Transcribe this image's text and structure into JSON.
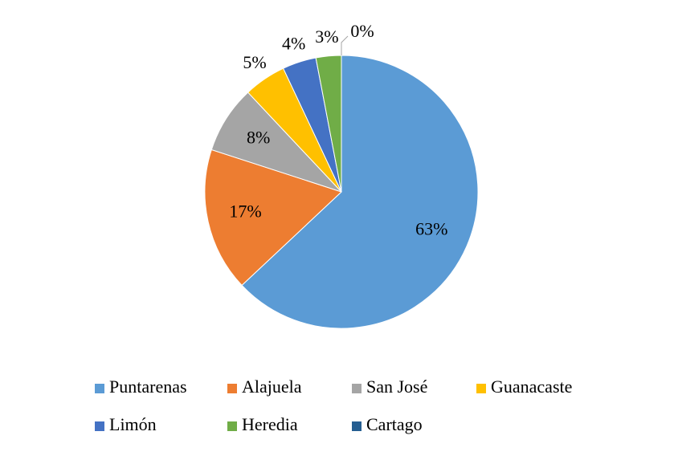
{
  "chart_data": {
    "type": "pie",
    "categories": [
      "Puntarenas",
      "Alajuela",
      "San José",
      "Guanacaste",
      "Limón",
      "Heredia",
      "Cartago"
    ],
    "values": [
      63,
      17,
      8,
      5,
      4,
      3,
      0
    ],
    "value_labels": [
      "63%",
      "17%",
      "8%",
      "5%",
      "4%",
      "3%",
      "0%"
    ],
    "colors": [
      "#5b9bd5",
      "#ed7d31",
      "#a5a5a5",
      "#ffc000",
      "#4472c4",
      "#70ad47",
      "#255e91"
    ],
    "legend": "bottom"
  }
}
